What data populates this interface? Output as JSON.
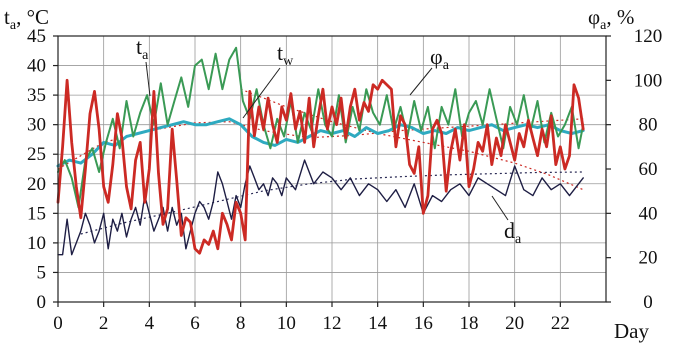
{
  "chart_data": {
    "type": "line",
    "xlabel": "Day",
    "ylabel_left": {
      "main": "t",
      "sub": "a",
      "rest": ", °C"
    },
    "ylabel_right": {
      "main": "φ",
      "sub": "a",
      "rest": ", %"
    },
    "xlim": [
      0,
      24
    ],
    "ylim_left": [
      0,
      45
    ],
    "ylim_right": [
      0,
      120
    ],
    "x_ticks": [
      0,
      2,
      4,
      6,
      8,
      10,
      12,
      14,
      16,
      18,
      20,
      22
    ],
    "x_tick_labels": [
      "0",
      "2",
      "4",
      "6",
      "8",
      "10",
      "12",
      "14",
      "16",
      "18",
      "20",
      "22"
    ],
    "y_left_ticks": [
      0,
      5,
      10,
      15,
      20,
      25,
      30,
      35,
      40,
      45
    ],
    "y_left_tick_labels": [
      "0",
      "5",
      "10",
      "15",
      "20",
      "25",
      "30",
      "35",
      "40",
      "45"
    ],
    "y_right_ticks": [
      0,
      20,
      40,
      60,
      80,
      100,
      120
    ],
    "y_right_tick_labels": [
      "0",
      "20",
      "40",
      "60",
      "80",
      "100",
      "120"
    ],
    "grid": true,
    "legend": "none",
    "series": [
      {
        "id": "ta",
        "axis": "left",
        "color": "#3a9a55",
        "x": [
          0,
          0.3,
          0.6,
          0.9,
          1.2,
          1.5,
          1.8,
          2.1,
          2.4,
          2.7,
          3.0,
          3.3,
          3.6,
          3.9,
          4.2,
          4.5,
          4.8,
          5.1,
          5.4,
          5.7,
          6.0,
          6.3,
          6.6,
          6.9,
          7.2,
          7.5,
          7.8,
          8.1,
          8.4,
          8.7,
          9.0,
          9.3,
          9.6,
          9.9,
          10.2,
          10.5,
          10.8,
          11.1,
          11.4,
          11.7,
          12.0,
          12.3,
          12.6,
          12.9,
          13.2,
          13.5,
          13.8,
          14.1,
          14.4,
          14.7,
          15.0,
          15.3,
          15.6,
          15.9,
          16.2,
          16.5,
          16.8,
          17.1,
          17.4,
          17.7,
          18.0,
          18.3,
          18.6,
          18.9,
          19.2,
          19.5,
          19.8,
          20.1,
          20.4,
          20.7,
          21.0,
          21.3,
          21.6,
          21.9,
          22.2,
          22.5,
          22.8,
          23.0
        ],
        "y": [
          22,
          24,
          21,
          16,
          24,
          26,
          22,
          27,
          31,
          26,
          34,
          28,
          32,
          35,
          30,
          37,
          30,
          34,
          38,
          33,
          40,
          41,
          36,
          42,
          36,
          41,
          43,
          34,
          31,
          36,
          30,
          26,
          31,
          28,
          34,
          27,
          32,
          29,
          36,
          30,
          28,
          35,
          27,
          33,
          29,
          36,
          32,
          30,
          35,
          29,
          33,
          28,
          34,
          29,
          33,
          26,
          33,
          30,
          36,
          28,
          32,
          34,
          30,
          36,
          31,
          26,
          33,
          30,
          35,
          29,
          34,
          27,
          32,
          28,
          30,
          33,
          26,
          30
        ]
      },
      {
        "id": "tw",
        "axis": "left",
        "color": "#2eaac0",
        "x": [
          0,
          0.5,
          1.0,
          1.5,
          2.0,
          2.5,
          3.0,
          3.5,
          4.0,
          4.5,
          5.0,
          5.5,
          6.0,
          6.5,
          7.0,
          7.5,
          8.0,
          8.5,
          9.0,
          9.5,
          10.0,
          10.5,
          11.0,
          11.5,
          12.0,
          12.5,
          13.0,
          13.5,
          14.0,
          14.5,
          15.0,
          15.5,
          16.0,
          16.5,
          17.0,
          17.5,
          18.0,
          18.5,
          19.0,
          19.5,
          20.0,
          20.5,
          21.0,
          21.5,
          22.0,
          22.5,
          23.0
        ],
        "y": [
          23,
          24,
          23.5,
          25,
          27,
          26.5,
          28,
          28.5,
          29,
          29.5,
          30,
          30.5,
          30,
          30,
          30.5,
          31,
          30,
          28,
          27,
          26.5,
          27.5,
          27,
          28,
          29,
          28.5,
          29,
          28,
          29.5,
          28.5,
          29,
          30,
          29.5,
          28.5,
          29,
          28.5,
          29.5,
          29,
          29.5,
          30,
          29,
          29.5,
          30,
          29.5,
          30,
          29,
          28.5,
          29
        ]
      },
      {
        "id": "phi",
        "axis": "right",
        "color": "#cc2a24",
        "x": [
          0,
          0.2,
          0.4,
          0.6,
          0.8,
          1.0,
          1.2,
          1.4,
          1.6,
          1.8,
          2.0,
          2.2,
          2.4,
          2.6,
          2.8,
          3.0,
          3.2,
          3.4,
          3.6,
          3.8,
          4.0,
          4.2,
          4.4,
          4.6,
          4.8,
          5.0,
          5.2,
          5.4,
          5.6,
          5.8,
          6.0,
          6.2,
          6.4,
          6.6,
          6.8,
          7.0,
          7.2,
          7.4,
          7.6,
          7.8,
          8.0,
          8.2,
          8.4,
          8.6,
          8.8,
          9.0,
          9.2,
          9.4,
          9.6,
          9.8,
          10.0,
          10.2,
          10.4,
          10.6,
          10.8,
          11.0,
          11.2,
          11.4,
          11.6,
          11.8,
          12.0,
          12.2,
          12.4,
          12.6,
          12.8,
          13.0,
          13.2,
          13.4,
          13.6,
          13.8,
          14.0,
          14.2,
          14.4,
          14.6,
          14.8,
          15.0,
          15.2,
          15.4,
          15.6,
          15.8,
          16.0,
          16.2,
          16.4,
          16.6,
          16.8,
          17.0,
          17.2,
          17.4,
          17.6,
          17.8,
          18.0,
          18.2,
          18.4,
          18.6,
          18.8,
          19.0,
          19.2,
          19.4,
          19.6,
          19.8,
          20.0,
          20.2,
          20.4,
          20.6,
          20.8,
          21.0,
          21.2,
          21.4,
          21.6,
          21.8,
          22.0,
          22.2,
          22.4,
          22.6,
          22.8,
          23.0
        ],
        "y": [
          45,
          70,
          100,
          72,
          52,
          38,
          60,
          85,
          95,
          78,
          52,
          45,
          62,
          85,
          74,
          52,
          42,
          64,
          72,
          45,
          60,
          95,
          58,
          35,
          42,
          78,
          55,
          30,
          38,
          36,
          24,
          22,
          28,
          26,
          32,
          24,
          40,
          35,
          28,
          45,
          40,
          28,
          95,
          75,
          88,
          78,
          92,
          80,
          72,
          88,
          82,
          94,
          78,
          86,
          72,
          92,
          70,
          84,
          96,
          78,
          88,
          80,
          92,
          74,
          88,
          96,
          82,
          90,
          86,
          98,
          96,
          100,
          98,
          96,
          70,
          84,
          80,
          62,
          58,
          70,
          40,
          48,
          78,
          82,
          76,
          50,
          68,
          78,
          64,
          80,
          52,
          60,
          72,
          68,
          80,
          62,
          74,
          66,
          80,
          72,
          64,
          76,
          70,
          82,
          74,
          66,
          78,
          70,
          84,
          62,
          70,
          60,
          66,
          98,
          92,
          78
        ]
      },
      {
        "id": "da",
        "axis": "left",
        "color": "#1e1e44",
        "x": [
          0,
          0.2,
          0.4,
          0.6,
          0.8,
          1.0,
          1.2,
          1.4,
          1.6,
          1.8,
          2.0,
          2.2,
          2.4,
          2.6,
          2.8,
          3.0,
          3.2,
          3.4,
          3.6,
          3.8,
          4.0,
          4.2,
          4.4,
          4.6,
          4.8,
          5.0,
          5.2,
          5.4,
          5.6,
          5.8,
          6.0,
          6.2,
          6.4,
          6.6,
          6.8,
          7.0,
          7.2,
          7.4,
          7.6,
          7.8,
          8.0,
          8.2,
          8.4,
          8.6,
          8.8,
          9.0,
          9.2,
          9.4,
          9.6,
          9.8,
          10.0,
          10.4,
          10.8,
          11.2,
          11.6,
          12.0,
          12.4,
          12.8,
          13.2,
          13.6,
          14.0,
          14.4,
          14.8,
          15.2,
          15.6,
          16.0,
          16.4,
          16.8,
          17.2,
          17.6,
          18.0,
          18.4,
          18.8,
          19.2,
          19.6,
          20.0,
          20.4,
          20.8,
          21.2,
          21.6,
          22.0,
          22.4,
          22.8,
          23.0
        ],
        "y": [
          8,
          8,
          14,
          8,
          10,
          12,
          15,
          13,
          10,
          12,
          15,
          9,
          14,
          12,
          15,
          11,
          14,
          16,
          13,
          18,
          15,
          12,
          14,
          16,
          12,
          16,
          13,
          15,
          9,
          12,
          15,
          17,
          16,
          14,
          17,
          22,
          20,
          17,
          14,
          18,
          16,
          20,
          23,
          21,
          19,
          20,
          18,
          21,
          20,
          18,
          21,
          19,
          24,
          20,
          22,
          21,
          19,
          21,
          18,
          20,
          19,
          17,
          19,
          16,
          20,
          15,
          18,
          17,
          19,
          20,
          18,
          21,
          20,
          19,
          18,
          23,
          19,
          18,
          21,
          19,
          20,
          18,
          20,
          21
        ]
      },
      {
        "id": "tw_trend",
        "axis": "left",
        "color": "#cc2a24",
        "style": "dotted",
        "x": [
          0,
          2,
          4,
          6,
          7.5,
          9,
          11,
          13,
          15,
          17,
          19,
          21,
          23
        ],
        "y": [
          22.5,
          27,
          29,
          30.3,
          30.5,
          29,
          27.8,
          28.2,
          29,
          29.5,
          30,
          30.5,
          31
        ]
      },
      {
        "id": "da_trend",
        "axis": "left",
        "color": "#2a2a55",
        "style": "dotted",
        "x": [
          1,
          3,
          5,
          7,
          9,
          11,
          13,
          15,
          17,
          19,
          21,
          23
        ],
        "y": [
          11.5,
          13.5,
          15.2,
          17,
          18.8,
          20,
          20.8,
          21.2,
          21.5,
          21.7,
          21.9,
          22
        ]
      },
      {
        "id": "ta_trend",
        "axis": "left",
        "color": "#cc2a24",
        "style": "dotted",
        "x": [
          8,
          10,
          12,
          14,
          16,
          18,
          20,
          21.5,
          23
        ],
        "y": [
          36,
          33,
          30.5,
          28.5,
          27,
          25.5,
          23.5,
          21.5,
          19
        ]
      }
    ],
    "annotations": [
      {
        "main": "t",
        "sub": "a"
      },
      {
        "main": "t",
        "sub": "w"
      },
      {
        "main": "φ",
        "sub": "a"
      },
      {
        "main": "d",
        "sub": "a"
      }
    ]
  }
}
